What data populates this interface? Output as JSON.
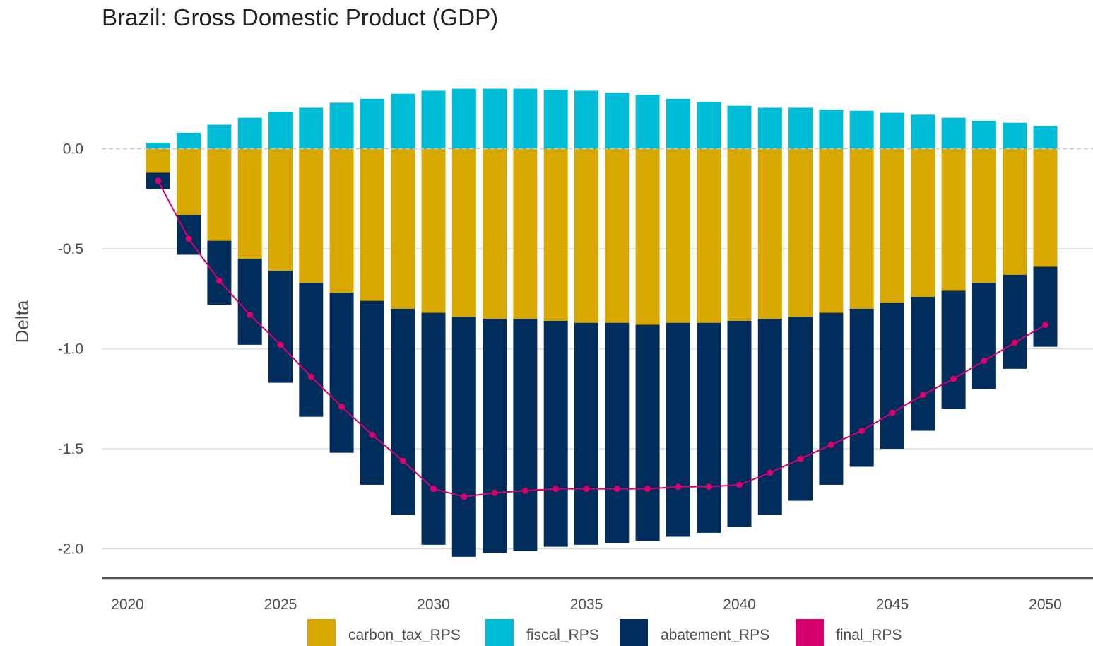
{
  "chart_data": {
    "type": "bar",
    "stacked": true,
    "title": "Brazil: Gross Domestic Product (GDP)",
    "xlabel": "",
    "ylabel": "Delta",
    "xlim": [
      2020,
      2050
    ],
    "ylim": [
      -2.1,
      0.35
    ],
    "x_ticks": [
      "2020",
      "2025",
      "2030",
      "2035",
      "2040",
      "2045",
      "2050"
    ],
    "y_ticks": [
      "0.0",
      "-0.5",
      "-1.0",
      "-1.5",
      "-2.0"
    ],
    "grid": true,
    "legend_position": "bottom",
    "categories": [
      2021,
      2022,
      2023,
      2024,
      2025,
      2026,
      2027,
      2028,
      2029,
      2030,
      2031,
      2032,
      2033,
      2034,
      2035,
      2036,
      2037,
      2038,
      2039,
      2040,
      2041,
      2042,
      2043,
      2044,
      2045,
      2046,
      2047,
      2048,
      2049,
      2050
    ],
    "series": [
      {
        "name": "carbon_tax_RPS",
        "kind": "bar",
        "color": "#D9A800",
        "values": [
          -0.12,
          -0.33,
          -0.46,
          -0.55,
          -0.61,
          -0.67,
          -0.72,
          -0.76,
          -0.8,
          -0.82,
          -0.84,
          -0.85,
          -0.85,
          -0.86,
          -0.87,
          -0.87,
          -0.88,
          -0.87,
          -0.87,
          -0.86,
          -0.85,
          -0.84,
          -0.82,
          -0.8,
          -0.77,
          -0.74,
          -0.71,
          -0.67,
          -0.63,
          -0.59
        ]
      },
      {
        "name": "fiscal_RPS",
        "kind": "bar",
        "color": "#00BCD6",
        "values": [
          0.03,
          0.08,
          0.12,
          0.155,
          0.185,
          0.205,
          0.23,
          0.25,
          0.275,
          0.29,
          0.3,
          0.3,
          0.3,
          0.295,
          0.29,
          0.28,
          0.27,
          0.25,
          0.235,
          0.215,
          0.205,
          0.205,
          0.195,
          0.19,
          0.18,
          0.17,
          0.155,
          0.14,
          0.13,
          0.115
        ]
      },
      {
        "name": "abatement_RPS",
        "kind": "bar",
        "color": "#002D5C",
        "values": [
          -0.08,
          -0.2,
          -0.32,
          -0.43,
          -0.56,
          -0.67,
          -0.8,
          -0.92,
          -1.03,
          -1.16,
          -1.2,
          -1.17,
          -1.16,
          -1.13,
          -1.11,
          -1.1,
          -1.08,
          -1.07,
          -1.05,
          -1.03,
          -0.98,
          -0.92,
          -0.86,
          -0.79,
          -0.73,
          -0.67,
          -0.59,
          -0.53,
          -0.47,
          -0.4
        ]
      },
      {
        "name": "final_RPS",
        "kind": "line",
        "color": "#D6006F",
        "values": [
          -0.16,
          -0.45,
          -0.66,
          -0.83,
          -0.98,
          -1.14,
          -1.29,
          -1.43,
          -1.56,
          -1.7,
          -1.74,
          -1.72,
          -1.71,
          -1.7,
          -1.7,
          -1.7,
          -1.7,
          -1.69,
          -1.69,
          -1.68,
          -1.62,
          -1.55,
          -1.48,
          -1.41,
          -1.32,
          -1.23,
          -1.15,
          -1.06,
          -0.97,
          -0.88
        ]
      }
    ]
  }
}
